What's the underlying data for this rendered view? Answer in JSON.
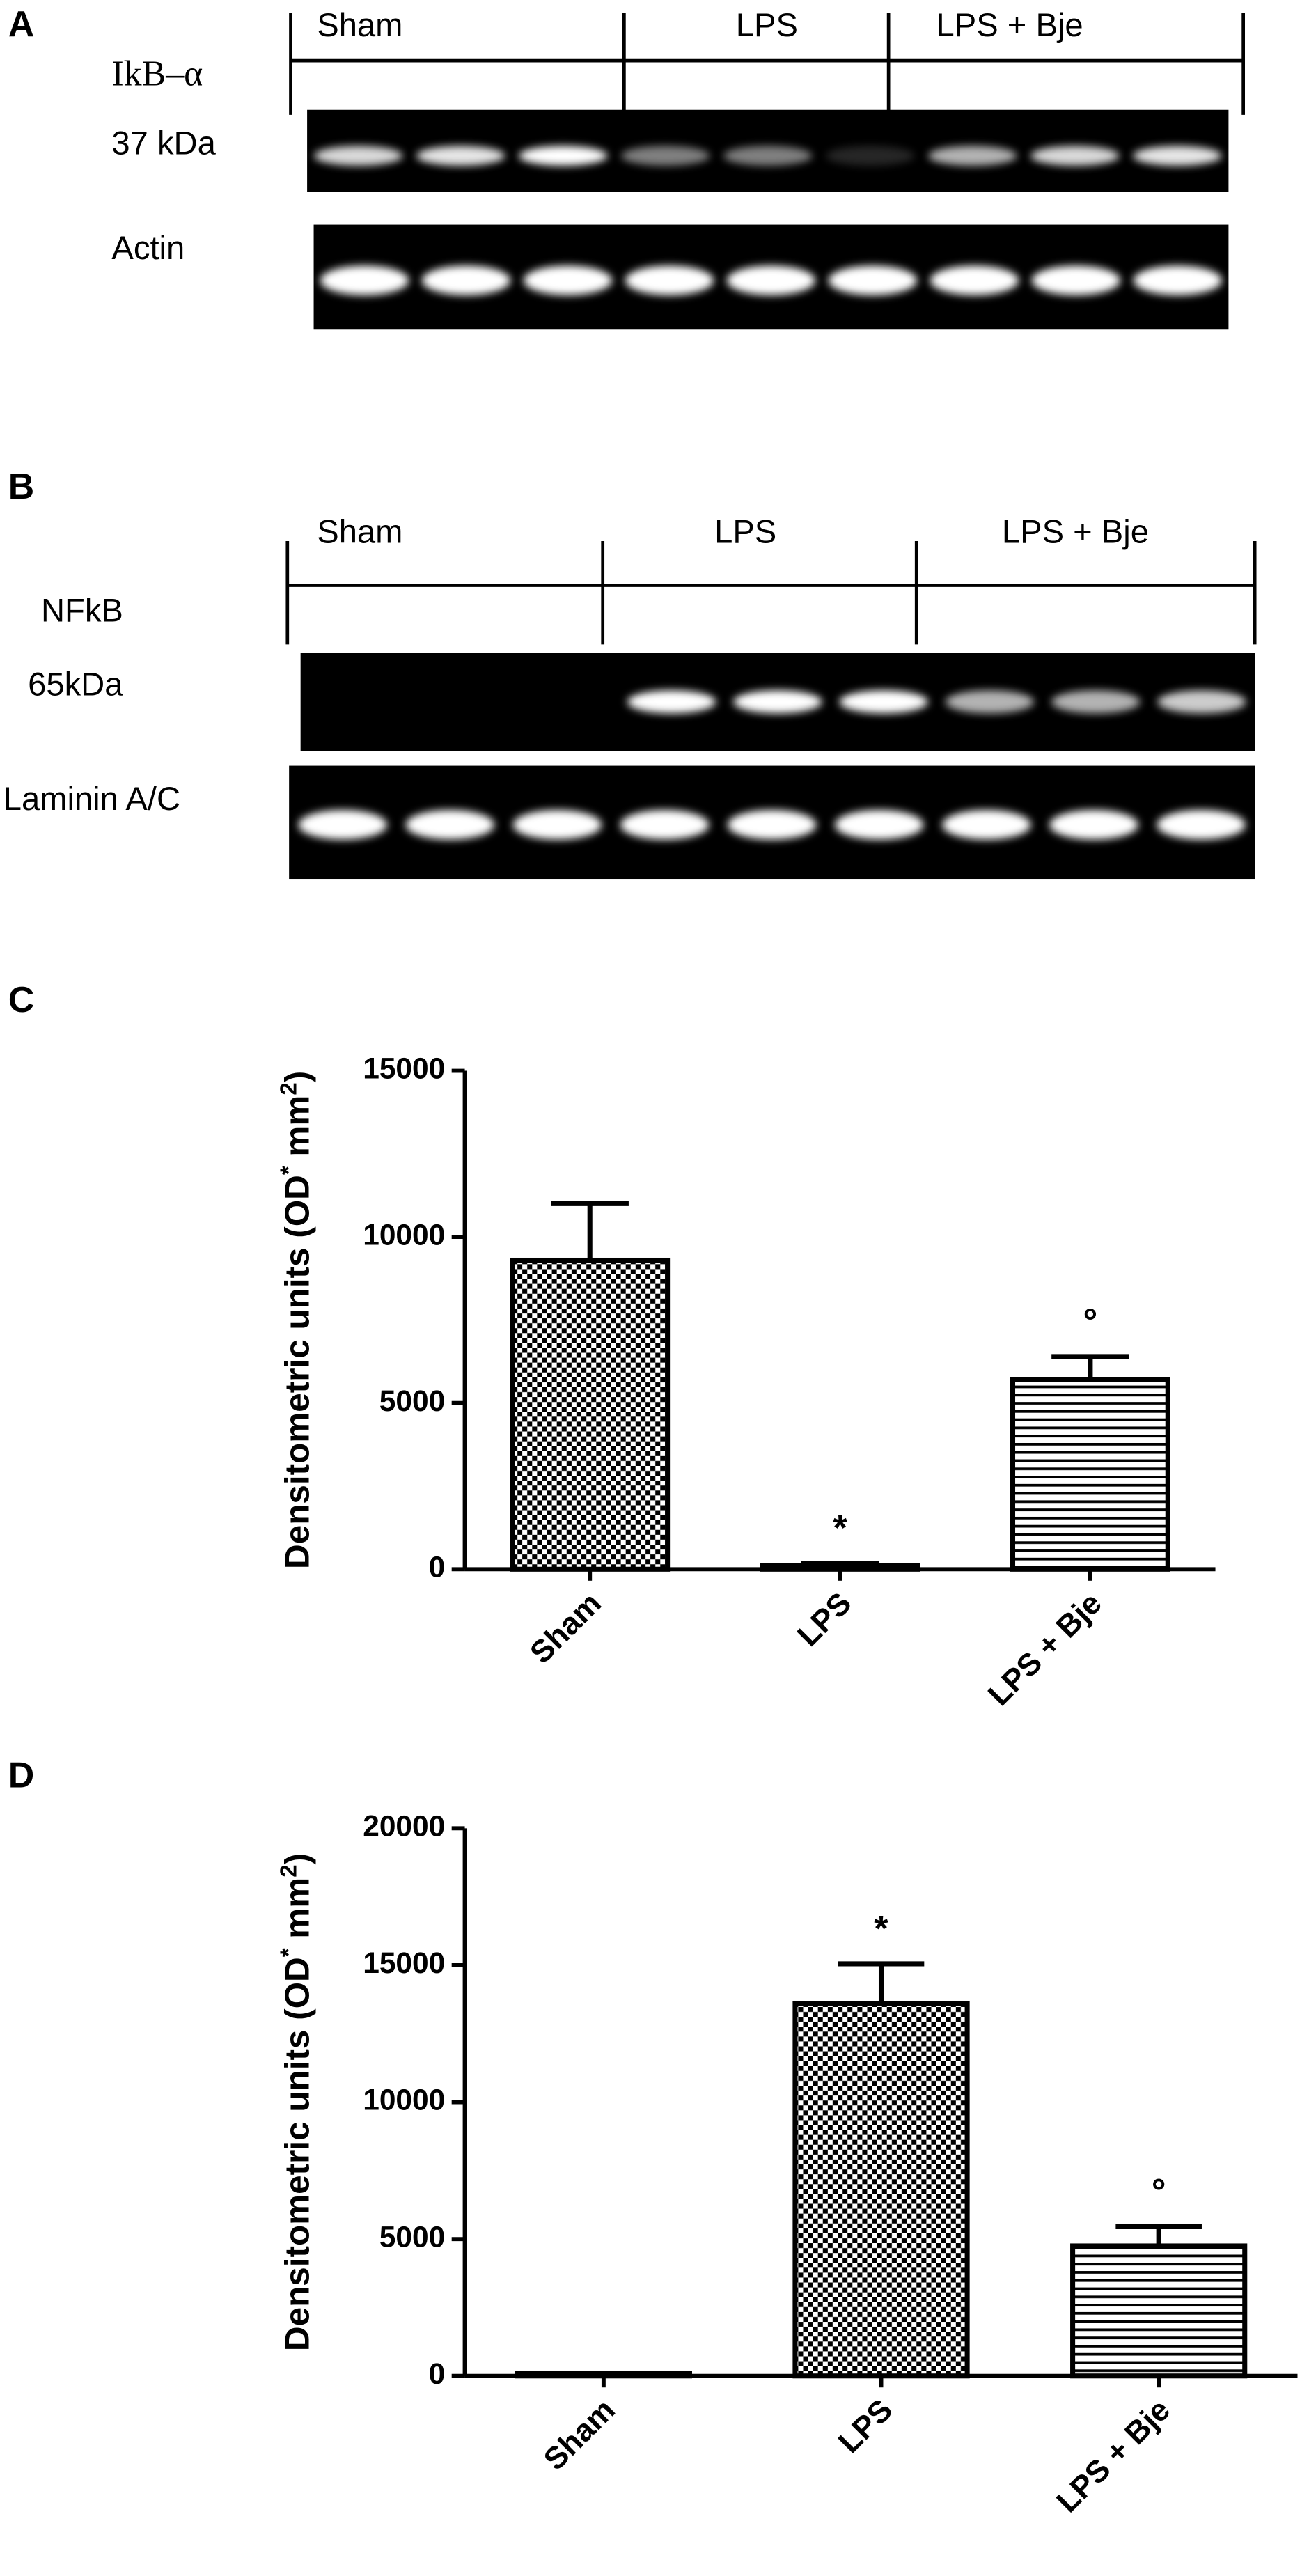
{
  "panels": {
    "A": {
      "label": "A",
      "groups": [
        "Sham",
        "LPS",
        "LPS + Bje"
      ],
      "top_blot": "IkB–α",
      "top_size": "37 kDa",
      "bottom_blot": "Actin"
    },
    "B": {
      "label": "B",
      "groups": [
        "Sham",
        "LPS",
        "LPS + Bje"
      ],
      "top_blot": "NFkB",
      "top_size": "65kDa",
      "bottom_blot": "Laminin A/C"
    }
  },
  "chart_data": [
    {
      "type": "bar",
      "panel": "C",
      "categories": [
        "Sham",
        "LPS",
        "LPS + Bje"
      ],
      "values": [
        9300,
        100,
        5700
      ],
      "errors": [
        1700,
        80,
        700
      ],
      "annotations": [
        null,
        "*",
        "°"
      ],
      "patterns": [
        "checker",
        "checker",
        "hstripes"
      ],
      "y_label": [
        "Densitometric units (OD",
        "*",
        " mm",
        "2",
        ")"
      ],
      "ylim": [
        0,
        15000
      ],
      "yticks": [
        0,
        5000,
        10000,
        15000
      ]
    },
    {
      "type": "bar",
      "panel": "D",
      "categories": [
        "Sham",
        "LPS",
        "LPS + Bje"
      ],
      "values": [
        100,
        13600,
        4750
      ],
      "errors": [
        0,
        1450,
        700
      ],
      "annotations": [
        null,
        "*",
        "°"
      ],
      "patterns": [
        "checker",
        "checker",
        "hstripes"
      ],
      "y_label": [
        "Densitometric units (OD",
        "*",
        " mm",
        "2",
        ")"
      ],
      "ylim": [
        0,
        20000
      ],
      "yticks": [
        0,
        5000,
        10000,
        15000,
        20000
      ]
    }
  ]
}
